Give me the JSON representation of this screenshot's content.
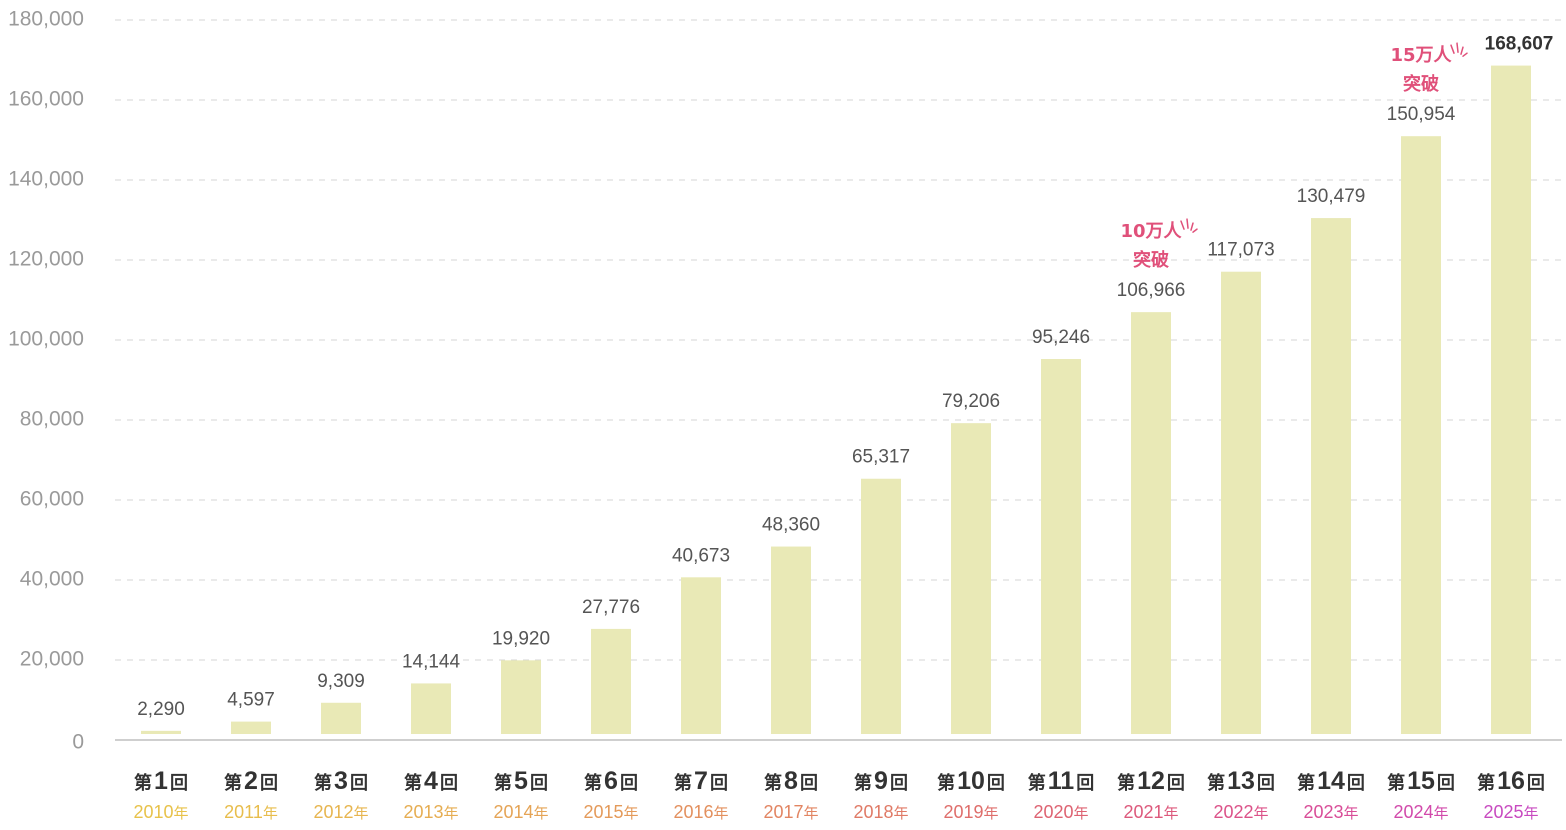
{
  "chart_data": {
    "type": "bar",
    "categories": [
      {
        "prefix": "第",
        "num": "1",
        "suffix": "回",
        "year": "2010",
        "year_suffix": "年",
        "year_color": "#e8c24a"
      },
      {
        "prefix": "第",
        "num": "2",
        "suffix": "回",
        "year": "2011",
        "year_suffix": "年",
        "year_color": "#e8bd4c"
      },
      {
        "prefix": "第",
        "num": "3",
        "suffix": "回",
        "year": "2012",
        "year_suffix": "年",
        "year_color": "#e7b54f"
      },
      {
        "prefix": "第",
        "num": "4",
        "suffix": "回",
        "year": "2013",
        "year_suffix": "年",
        "year_color": "#e6ad52"
      },
      {
        "prefix": "第",
        "num": "5",
        "suffix": "回",
        "year": "2014",
        "year_suffix": "年",
        "year_color": "#e5a456"
      },
      {
        "prefix": "第",
        "num": "6",
        "suffix": "回",
        "year": "2015",
        "year_suffix": "年",
        "year_color": "#e49a5a"
      },
      {
        "prefix": "第",
        "num": "7",
        "suffix": "回",
        "year": "2016",
        "year_suffix": "年",
        "year_color": "#e3905e"
      },
      {
        "prefix": "第",
        "num": "8",
        "suffix": "回",
        "year": "2017",
        "year_suffix": "年",
        "year_color": "#e28562"
      },
      {
        "prefix": "第",
        "num": "9",
        "suffix": "回",
        "year": "2018",
        "year_suffix": "年",
        "year_color": "#e07a66"
      },
      {
        "prefix": "第",
        "num": "10",
        "suffix": "回",
        "year": "2019",
        "year_suffix": "年",
        "year_color": "#df6e6b"
      },
      {
        "prefix": "第",
        "num": "11",
        "suffix": "回",
        "year": "2020",
        "year_suffix": "年",
        "year_color": "#de6372"
      },
      {
        "prefix": "第",
        "num": "12",
        "suffix": "回",
        "year": "2021",
        "year_suffix": "年",
        "year_color": "#dd597c"
      },
      {
        "prefix": "第",
        "num": "13",
        "suffix": "回",
        "year": "2022",
        "year_suffix": "年",
        "year_color": "#dc5289"
      },
      {
        "prefix": "第",
        "num": "14",
        "suffix": "回",
        "year": "2023",
        "year_suffix": "年",
        "year_color": "#d94d98"
      },
      {
        "prefix": "第",
        "num": "15",
        "suffix": "回",
        "year": "2024",
        "year_suffix": "年",
        "year_color": "#d24aab"
      },
      {
        "prefix": "第",
        "num": "16",
        "suffix": "回",
        "year": "2025",
        "year_suffix": "年",
        "year_color": "#c84ac0"
      }
    ],
    "values": [
      2290,
      4597,
      9309,
      14144,
      19920,
      27776,
      40673,
      48360,
      65317,
      79206,
      95246,
      106966,
      117073,
      130479,
      150954,
      168607
    ],
    "value_labels": [
      "2,290",
      "4,597",
      "9,309",
      "14,144",
      "19,920",
      "27,776",
      "40,673",
      "48,360",
      "65,317",
      "79,206",
      "95,246",
      "106,966",
      "117,073",
      "130,479",
      "150,954",
      "168,607"
    ],
    "y_ticks": [
      0,
      20000,
      40000,
      60000,
      80000,
      100000,
      120000,
      140000,
      160000,
      180000
    ],
    "y_tick_labels": [
      "0",
      "20,000",
      "40,000",
      "60,000",
      "80,000",
      "100,000",
      "120,000",
      "140,000",
      "160,000",
      "180,000"
    ],
    "ylim": [
      0,
      180000
    ],
    "grid": true,
    "bar_color": "#e9e9b6",
    "highlight_index": 15,
    "annotations": [
      {
        "category_index": 11,
        "line1": "10万人",
        "line2": "突破",
        "color": "#e0507a"
      },
      {
        "category_index": 14,
        "line1": "15万人",
        "line2": "突破",
        "color": "#e0507a"
      }
    ],
    "title": "",
    "xlabel": "",
    "ylabel": ""
  }
}
